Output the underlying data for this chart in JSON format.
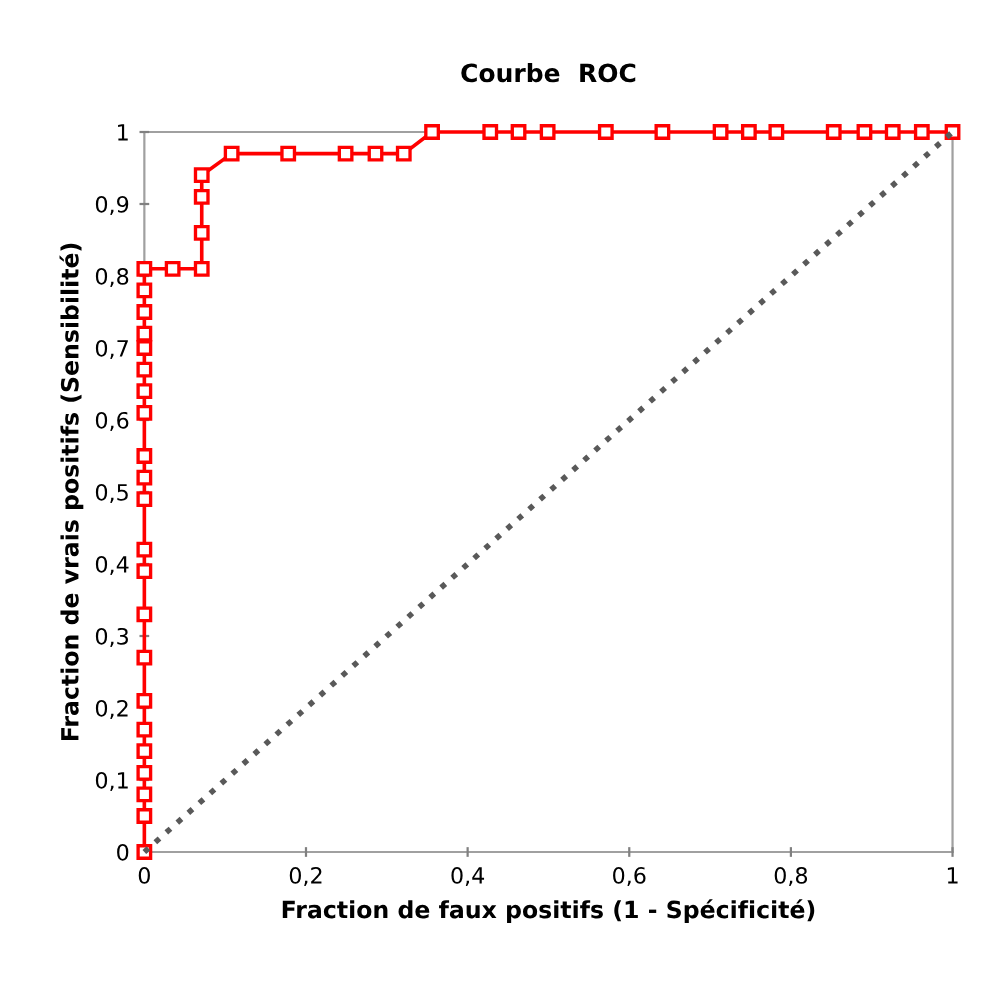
{
  "chart_data": {
    "type": "line",
    "title": "Courbe  ROC",
    "xlabel": "Fraction de faux positifs (1 - Spécificité)",
    "ylabel": "Fraction de vrais positifs (Sensibilité)",
    "xlim": [
      0,
      1
    ],
    "ylim": [
      0,
      1
    ],
    "xticks": [
      0,
      {
        "value": 0.2,
        "label": "0,2"
      },
      {
        "value": 0.4,
        "label": "0,4"
      },
      {
        "value": 0.6,
        "label": "0,6"
      },
      {
        "value": 0.8,
        "label": "0,8"
      },
      1
    ],
    "yticks": [
      0,
      {
        "value": 0.1,
        "label": "0,1"
      },
      {
        "value": 0.2,
        "label": "0,2"
      },
      {
        "value": 0.3,
        "label": "0,3"
      },
      {
        "value": 0.4,
        "label": "0,4"
      },
      {
        "value": 0.5,
        "label": "0,5"
      },
      {
        "value": 0.6,
        "label": "0,6"
      },
      {
        "value": 0.7,
        "label": "0,7"
      },
      {
        "value": 0.8,
        "label": "0,8"
      },
      {
        "value": 0.9,
        "label": "0,9"
      },
      1
    ],
    "grid": false,
    "legend": false,
    "series": [
      {
        "color": "#ff0000",
        "marker": "square",
        "line_style": "solid",
        "x": [
          0,
          0,
          0,
          0,
          0,
          0,
          0,
          0,
          0,
          0,
          0,
          0,
          0,
          0,
          0,
          0,
          0,
          0,
          0,
          0,
          0,
          0,
          0.035,
          0.071,
          0.071,
          0.071,
          0.071,
          0.108,
          0.178,
          0.249,
          0.286,
          0.321,
          0.356,
          0.428,
          0.463,
          0.499,
          0.571,
          0.641,
          0.713,
          0.748,
          0.782,
          0.853,
          0.891,
          0.926,
          0.962,
          1.0
        ],
        "values": [
          0,
          0.05,
          0.08,
          0.11,
          0.14,
          0.17,
          0.21,
          0.27,
          0.33,
          0.39,
          0.42,
          0.49,
          0.52,
          0.55,
          0.61,
          0.64,
          0.67,
          0.7,
          0.72,
          0.75,
          0.78,
          0.81,
          0.81,
          0.81,
          0.86,
          0.91,
          0.94,
          0.97,
          0.97,
          0.97,
          0.97,
          0.97,
          1,
          1,
          1,
          1,
          1,
          1,
          1,
          1,
          1,
          1,
          1,
          1,
          1,
          1
        ]
      },
      {
        "color": "#595959",
        "marker": "none",
        "line_style": "dotted",
        "x": [
          0,
          1
        ],
        "values": [
          0,
          1
        ]
      }
    ]
  }
}
